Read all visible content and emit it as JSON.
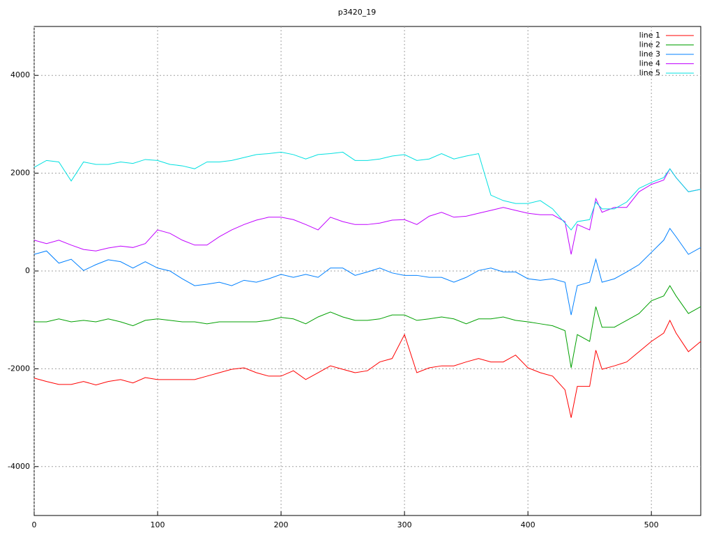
{
  "chart_data": {
    "type": "line",
    "title": "p3420_19",
    "x": [
      0,
      10,
      20,
      30,
      40,
      50,
      60,
      70,
      80,
      90,
      100,
      110,
      120,
      130,
      140,
      150,
      160,
      170,
      180,
      190,
      200,
      210,
      220,
      230,
      240,
      250,
      260,
      270,
      280,
      290,
      300,
      310,
      320,
      330,
      340,
      350,
      360,
      370,
      380,
      390,
      400,
      410,
      420,
      430,
      435,
      440,
      450,
      455,
      460,
      470,
      480,
      490,
      500,
      510,
      515,
      520,
      530,
      540
    ],
    "series": [
      {
        "name": "line 1",
        "color": "#ff0000",
        "values": [
          -2190,
          -2260,
          -2320,
          -2320,
          -2260,
          -2330,
          -2260,
          -2220,
          -2290,
          -2180,
          -2220,
          -2220,
          -2220,
          -2220,
          -2150,
          -2080,
          -2010,
          -1980,
          -2080,
          -2150,
          -2150,
          -2040,
          -2220,
          -2080,
          -1940,
          -2010,
          -2080,
          -2040,
          -1860,
          -1790,
          -1300,
          -2080,
          -1980,
          -1940,
          -1940,
          -1860,
          -1790,
          -1860,
          -1860,
          -1720,
          -1980,
          -2080,
          -2150,
          -2430,
          -3000,
          -2360,
          -2360,
          -1620,
          -2010,
          -1940,
          -1860,
          -1650,
          -1440,
          -1270,
          -1010,
          -1270,
          -1650,
          -1440
        ]
      },
      {
        "name": "line 2",
        "color": "#00a000",
        "values": [
          -1040,
          -1040,
          -980,
          -1040,
          -1010,
          -1040,
          -980,
          -1040,
          -1120,
          -1010,
          -980,
          -1010,
          -1040,
          -1040,
          -1080,
          -1040,
          -1040,
          -1040,
          -1040,
          -1010,
          -950,
          -980,
          -1080,
          -940,
          -840,
          -940,
          -1010,
          -1010,
          -980,
          -900,
          -900,
          -1010,
          -980,
          -940,
          -980,
          -1080,
          -980,
          -980,
          -940,
          -1010,
          -1040,
          -1080,
          -1120,
          -1220,
          -1980,
          -1300,
          -1440,
          -730,
          -1150,
          -1150,
          -1010,
          -870,
          -610,
          -510,
          -300,
          -510,
          -870,
          -730
        ]
      },
      {
        "name": "line 3",
        "color": "#0080ff",
        "values": [
          340,
          410,
          160,
          240,
          10,
          130,
          230,
          190,
          60,
          190,
          60,
          0,
          -160,
          -300,
          -270,
          -230,
          -300,
          -190,
          -230,
          -160,
          -70,
          -130,
          -70,
          -130,
          60,
          60,
          -90,
          -20,
          60,
          -40,
          -90,
          -90,
          -130,
          -130,
          -230,
          -130,
          10,
          60,
          -20,
          -20,
          -160,
          -190,
          -160,
          -230,
          -900,
          -300,
          -230,
          240,
          -230,
          -160,
          -20,
          130,
          380,
          630,
          870,
          700,
          340,
          480
        ]
      },
      {
        "name": "line 4",
        "color": "#c000ff",
        "values": [
          630,
          560,
          630,
          530,
          440,
          410,
          470,
          510,
          480,
          560,
          840,
          770,
          630,
          530,
          530,
          700,
          840,
          950,
          1040,
          1100,
          1100,
          1050,
          950,
          840,
          1100,
          1010,
          950,
          950,
          980,
          1040,
          1050,
          950,
          1120,
          1200,
          1100,
          1120,
          1180,
          1240,
          1300,
          1240,
          1180,
          1150,
          1150,
          1010,
          340,
          950,
          840,
          1480,
          1200,
          1300,
          1300,
          1620,
          1770,
          1860,
          2090,
          1910,
          1620,
          1670
        ]
      },
      {
        "name": "line 5",
        "color": "#00e0e0",
        "values": [
          2120,
          2260,
          2230,
          1840,
          2230,
          2180,
          2180,
          2230,
          2200,
          2280,
          2260,
          2180,
          2150,
          2090,
          2230,
          2230,
          2260,
          2320,
          2380,
          2400,
          2430,
          2380,
          2290,
          2380,
          2400,
          2430,
          2260,
          2260,
          2290,
          2350,
          2380,
          2260,
          2290,
          2400,
          2290,
          2350,
          2400,
          1550,
          1440,
          1380,
          1380,
          1440,
          1270,
          980,
          840,
          1010,
          1050,
          1410,
          1270,
          1270,
          1410,
          1690,
          1810,
          1910,
          2090,
          1910,
          1620,
          1670
        ]
      }
    ],
    "xlim": [
      0,
      540
    ],
    "ylim": [
      -5000,
      5000
    ],
    "xticks": [
      0,
      100,
      200,
      300,
      400,
      500
    ],
    "yticks": [
      -4000,
      -2000,
      0,
      2000,
      4000
    ],
    "grid": true,
    "legend": "top-right"
  }
}
